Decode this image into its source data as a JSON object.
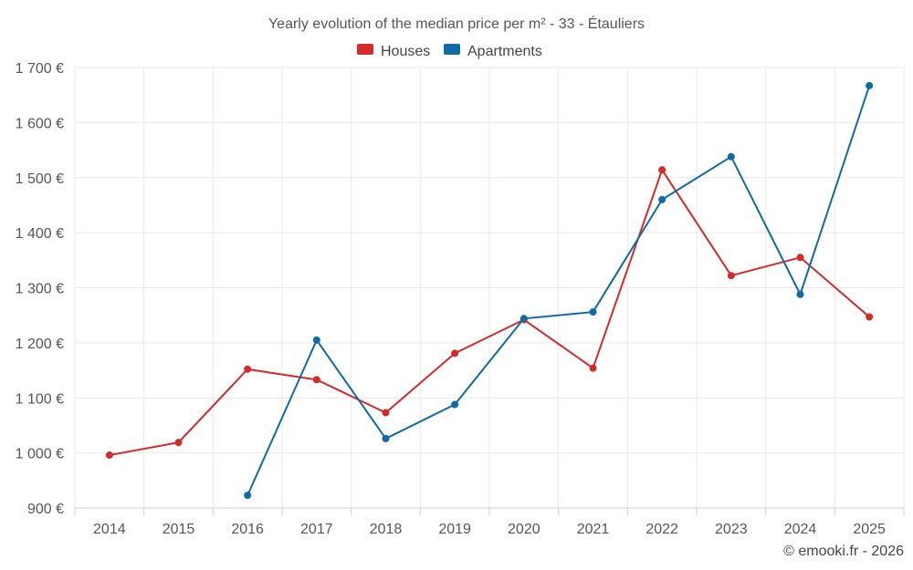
{
  "chart_data": {
    "type": "line",
    "title": "Yearly evolution of the median price per m² - 33 - Étauliers",
    "categories": [
      "2014",
      "2015",
      "2016",
      "2017",
      "2018",
      "2019",
      "2020",
      "2021",
      "2022",
      "2023",
      "2024",
      "2025"
    ],
    "ylim": [
      900,
      1700
    ],
    "yticks": [
      900,
      1000,
      1100,
      1200,
      1300,
      1400,
      1500,
      1600,
      1700
    ],
    "ytick_labels": [
      "900 €",
      "1 000 €",
      "1 100 €",
      "1 200 €",
      "1 300 €",
      "1 400 €",
      "1 500 €",
      "1 600 €",
      "1 700 €"
    ],
    "series": [
      {
        "name": "Houses",
        "color": "#d42a2a",
        "values": [
          996,
          1019,
          1152,
          1133,
          1073,
          1181,
          1242,
          1154,
          1514,
          1322,
          1355,
          1247
        ]
      },
      {
        "name": "Apartments",
        "color": "#0f6ba3",
        "values": [
          null,
          null,
          923,
          1205,
          1026,
          1088,
          1244,
          1256,
          1460,
          1538,
          1288,
          1667
        ]
      }
    ],
    "legend_position": "top-center",
    "grid": true
  },
  "credit": "© emooki.fr - 2026"
}
